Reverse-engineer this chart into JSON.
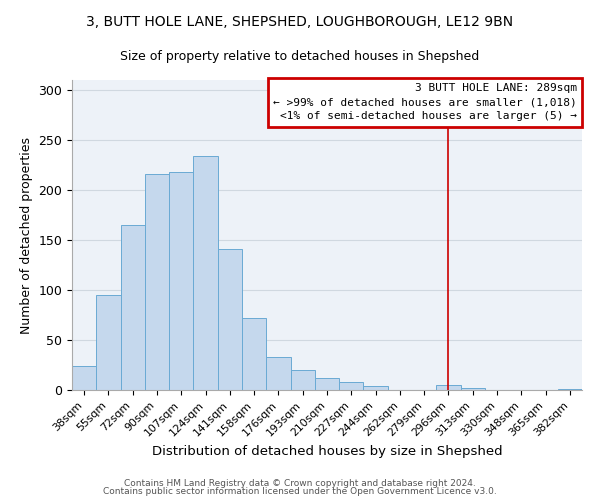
{
  "title": "3, BUTT HOLE LANE, SHEPSHED, LOUGHBOROUGH, LE12 9BN",
  "subtitle": "Size of property relative to detached houses in Shepshed",
  "xlabel": "Distribution of detached houses by size in Shepshed",
  "ylabel": "Number of detached properties",
  "bar_color": "#c5d8ed",
  "bar_edge_color": "#6aaad4",
  "background_color": "#edf2f8",
  "grid_color": "#d0d8e0",
  "categories": [
    "38sqm",
    "55sqm",
    "72sqm",
    "90sqm",
    "107sqm",
    "124sqm",
    "141sqm",
    "158sqm",
    "176sqm",
    "193sqm",
    "210sqm",
    "227sqm",
    "244sqm",
    "262sqm",
    "279sqm",
    "296sqm",
    "313sqm",
    "330sqm",
    "348sqm",
    "365sqm",
    "382sqm"
  ],
  "values": [
    24,
    95,
    165,
    216,
    218,
    234,
    141,
    72,
    33,
    20,
    12,
    8,
    4,
    0,
    0,
    5,
    2,
    0,
    0,
    0,
    1
  ],
  "vline_x": 15,
  "vline_color": "#cc0000",
  "annotation_title": "3 BUTT HOLE LANE: 289sqm",
  "annotation_line1": "← >99% of detached houses are smaller (1,018)",
  "annotation_line2": "<1% of semi-detached houses are larger (5) →",
  "annotation_box_color": "#cc0000",
  "ylim": [
    0,
    310
  ],
  "yticks": [
    0,
    50,
    100,
    150,
    200,
    250,
    300
  ],
  "footer1": "Contains HM Land Registry data © Crown copyright and database right 2024.",
  "footer2": "Contains public sector information licensed under the Open Government Licence v3.0."
}
